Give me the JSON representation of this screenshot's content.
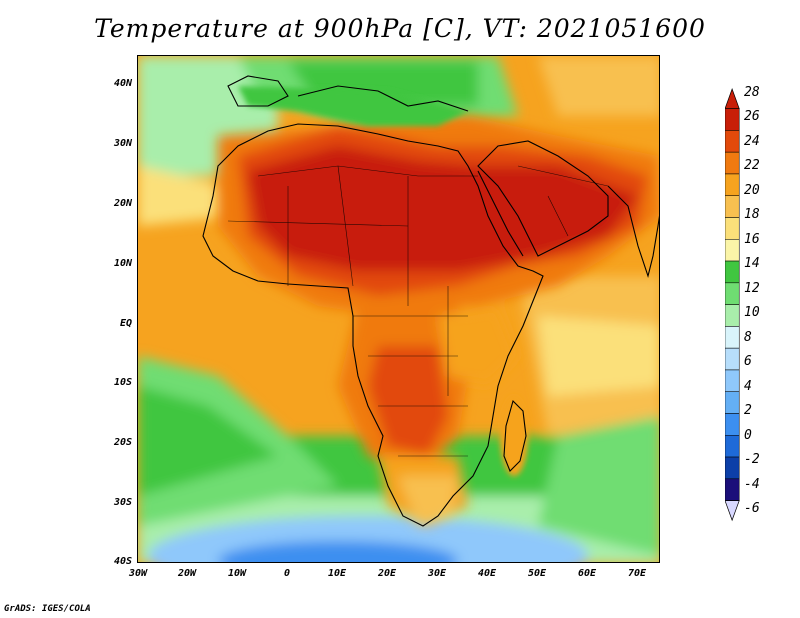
{
  "title": "Temperature at 900hPa [C], VT: 2021051600",
  "credit": "GrADS: IGES/COLA",
  "map": {
    "lon_range": [
      -30,
      75
    ],
    "lat_range": [
      -40,
      45
    ],
    "lat_labels": [
      "40N",
      "30N",
      "20N",
      "10N",
      "EQ",
      "10S",
      "20S",
      "30S",
      "40S"
    ],
    "lon_labels": [
      "30W",
      "20W",
      "10W",
      "0",
      "10E",
      "20E",
      "30E",
      "40E",
      "50E",
      "60E",
      "70E"
    ]
  },
  "colorbar": {
    "labels": [
      "28",
      "26",
      "24",
      "22",
      "20",
      "18",
      "16",
      "14",
      "12",
      "10",
      "8",
      "6",
      "4",
      "2",
      "0",
      "-2",
      "-4",
      "-6"
    ],
    "colors": [
      "#1b0f7a",
      "#0c3fa8",
      "#1e6ad8",
      "#3c8ff0",
      "#64aff5",
      "#8fc8fb",
      "#b7defb",
      "#d9f4fb",
      "#a9eeab",
      "#6fdd72",
      "#40c640",
      "#fbf5a8",
      "#fbe07a",
      "#f8c050",
      "#f6a31f",
      "#f07a10",
      "#e24a0b",
      "#c81e08"
    ]
  },
  "icons": {
    "top": "colorbar-triangle-up",
    "bottom": "colorbar-triangle-down"
  }
}
